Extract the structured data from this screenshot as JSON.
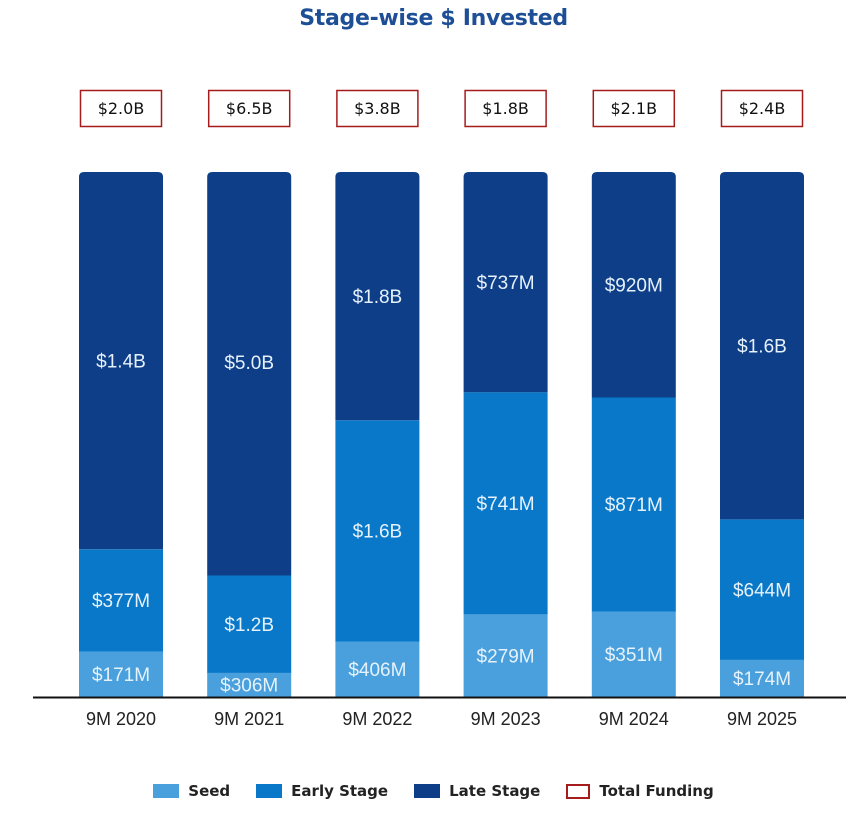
{
  "chart_data": {
    "type": "bar",
    "stacked": true,
    "normalized": true,
    "title": "Stage-wise $ Invested",
    "xlabel": "",
    "ylabel": "",
    "grid": false,
    "legend_position": "bottom",
    "categories": [
      "9M 2020",
      "9M 2021",
      "9M 2022",
      "9M 2023",
      "9M 2024",
      "9M 2025"
    ],
    "series": [
      {
        "name": "Seed",
        "color": "#4aa0dc",
        "values": [
          171,
          306,
          406,
          279,
          351,
          174
        ],
        "labels": [
          "$171M",
          "$306M",
          "$406M",
          "$279M",
          "$351M",
          "$174M"
        ]
      },
      {
        "name": "Early Stage",
        "color": "#0a78c8",
        "values": [
          377,
          1200,
          1600,
          741,
          871,
          644
        ],
        "labels": [
          "$377M",
          "$1.2B",
          "$1.6B",
          "$741M",
          "$871M",
          "$644M"
        ]
      },
      {
        "name": "Late Stage",
        "color": "#0f3e88",
        "values": [
          1400,
          5000,
          1800,
          737,
          920,
          1600
        ],
        "labels": [
          "$1.4B",
          "$5.0B",
          "$1.8B",
          "$737M",
          "$920M",
          "$1.6B"
        ]
      }
    ],
    "value_unit": "USD millions",
    "total_funding": {
      "name": "Total Funding",
      "border_color": "#a61c1c",
      "values": [
        2000,
        6500,
        3800,
        1800,
        2100,
        2400
      ],
      "labels": [
        "$2.0B",
        "$6.5B",
        "$3.8B",
        "$1.8B",
        "$2.1B",
        "$2.4B"
      ]
    }
  },
  "legend": [
    {
      "label": "Seed",
      "color": "#4aa0dc",
      "style": "fill"
    },
    {
      "label": "Early Stage",
      "color": "#0a78c8",
      "style": "fill"
    },
    {
      "label": "Late Stage",
      "color": "#0f3e88",
      "style": "fill"
    },
    {
      "label": "Total Funding",
      "color": "#a61c1c",
      "style": "outline"
    }
  ]
}
